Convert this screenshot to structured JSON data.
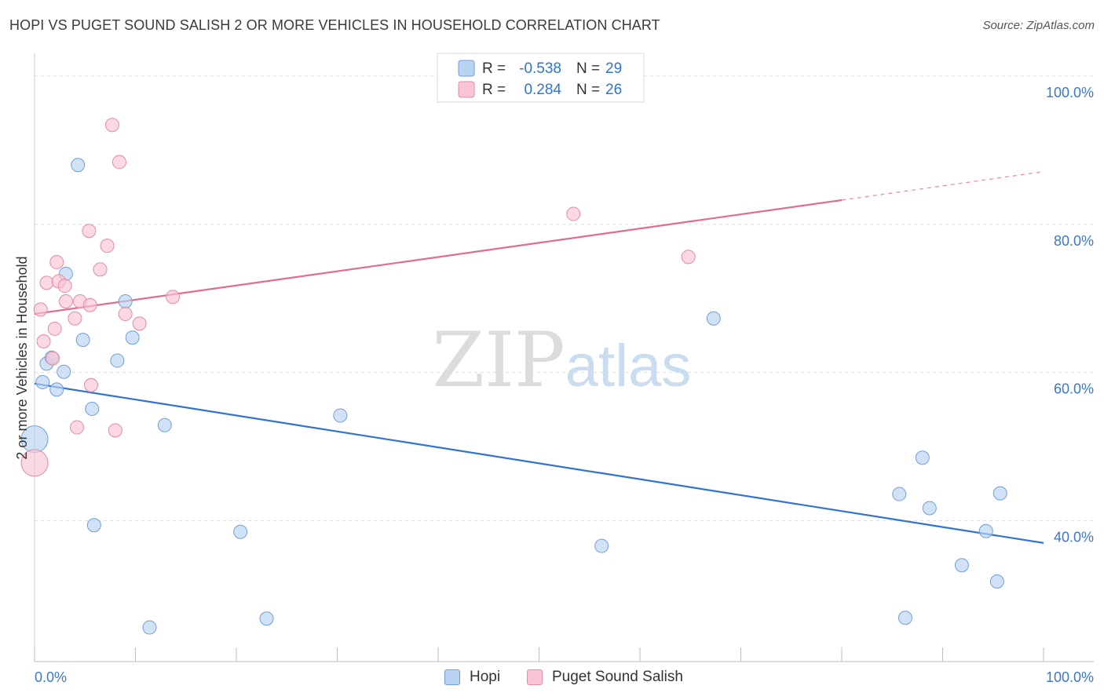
{
  "chart_data": {
    "type": "scatter",
    "title": "HOPI VS PUGET SOUND SALISH 2 OR MORE VEHICLES IN HOUSEHOLD CORRELATION CHART",
    "source": "Source: ZipAtlas.com",
    "ylabel": "2 or more Vehicles in Household",
    "xlabel": "",
    "xlim": [
      0,
      100
    ],
    "ylim": [
      21,
      102
    ],
    "x_tick_labels": [
      "0.0%",
      "100.0%"
    ],
    "y_ticks": [
      40,
      60,
      80,
      100
    ],
    "y_tick_labels": [
      "40.0%",
      "60.0%",
      "80.0%",
      "100.0%"
    ],
    "watermark": {
      "zip": "ZIP",
      "atlas": "atlas"
    },
    "legend": [
      {
        "name": "Hopi",
        "r_label": "R =",
        "r_value": "-0.538",
        "n_label": "N =",
        "n_value": "29"
      },
      {
        "name": "Puget Sound Salish",
        "r_label": "R =",
        "r_value": "0.284",
        "n_label": "N =",
        "n_value": "26"
      }
    ],
    "colors": {
      "hopi_fill": "#b9d3f3",
      "hopi_stroke": "#6f9fd8",
      "hopi_line": "#2f74d0",
      "salish_fill": "#f9c4d3",
      "salish_stroke": "#e48aa6",
      "salish_line": "#e26b93",
      "grid": "#dedede",
      "axis_text": "#3b78c8"
    },
    "series": [
      {
        "name": "Hopi",
        "trend": {
          "x0": 0,
          "y0": 58.5,
          "x1": 100,
          "y1": 37.0,
          "dashed_from": null
        },
        "points": [
          {
            "x": 0,
            "y": 51,
            "big": true
          },
          {
            "x": 0.8,
            "y": 58.7
          },
          {
            "x": 1.2,
            "y": 61.2
          },
          {
            "x": 1.7,
            "y": 62.0
          },
          {
            "x": 2.2,
            "y": 57.7
          },
          {
            "x": 2.9,
            "y": 60.1
          },
          {
            "x": 3.1,
            "y": 73.3
          },
          {
            "x": 4.3,
            "y": 88.0
          },
          {
            "x": 4.8,
            "y": 64.4
          },
          {
            "x": 5.7,
            "y": 55.1
          },
          {
            "x": 5.9,
            "y": 39.4
          },
          {
            "x": 9.7,
            "y": 64.7
          },
          {
            "x": 8.2,
            "y": 61.6
          },
          {
            "x": 9.0,
            "y": 69.6
          },
          {
            "x": 11.4,
            "y": 25.6
          },
          {
            "x": 12.9,
            "y": 52.9
          },
          {
            "x": 20.4,
            "y": 38.5
          },
          {
            "x": 23.0,
            "y": 26.8
          },
          {
            "x": 30.3,
            "y": 54.2
          },
          {
            "x": 56.2,
            "y": 36.6
          },
          {
            "x": 67.3,
            "y": 67.3
          },
          {
            "x": 85.7,
            "y": 43.6
          },
          {
            "x": 86.3,
            "y": 26.9
          },
          {
            "x": 88.0,
            "y": 48.5
          },
          {
            "x": 88.7,
            "y": 41.7
          },
          {
            "x": 91.9,
            "y": 34.0
          },
          {
            "x": 94.3,
            "y": 38.6
          },
          {
            "x": 95.4,
            "y": 31.8
          },
          {
            "x": 95.7,
            "y": 43.7
          }
        ]
      },
      {
        "name": "Puget Sound Salish",
        "trend": {
          "x0": 0,
          "y0": 67.9,
          "x1": 100,
          "y1": 87.1,
          "dashed_from": 80
        },
        "points": [
          {
            "x": 0,
            "y": 47.8,
            "big": true
          },
          {
            "x": 0.6,
            "y": 68.5
          },
          {
            "x": 0.9,
            "y": 64.2
          },
          {
            "x": 1.2,
            "y": 72.1
          },
          {
            "x": 1.8,
            "y": 61.9
          },
          {
            "x": 2.0,
            "y": 65.9
          },
          {
            "x": 2.2,
            "y": 74.9
          },
          {
            "x": 2.4,
            "y": 72.3
          },
          {
            "x": 3.0,
            "y": 71.7
          },
          {
            "x": 3.1,
            "y": 69.6
          },
          {
            "x": 4.0,
            "y": 67.3
          },
          {
            "x": 4.2,
            "y": 52.6
          },
          {
            "x": 4.5,
            "y": 69.6
          },
          {
            "x": 5.4,
            "y": 79.1
          },
          {
            "x": 5.5,
            "y": 69.1
          },
          {
            "x": 5.6,
            "y": 58.3
          },
          {
            "x": 6.5,
            "y": 73.9
          },
          {
            "x": 7.2,
            "y": 77.1
          },
          {
            "x": 7.7,
            "y": 93.4
          },
          {
            "x": 8.0,
            "y": 52.2
          },
          {
            "x": 8.4,
            "y": 88.4
          },
          {
            "x": 9.0,
            "y": 67.9
          },
          {
            "x": 10.4,
            "y": 66.6
          },
          {
            "x": 13.7,
            "y": 70.2
          },
          {
            "x": 53.4,
            "y": 81.4
          },
          {
            "x": 64.8,
            "y": 75.6
          }
        ]
      }
    ]
  }
}
